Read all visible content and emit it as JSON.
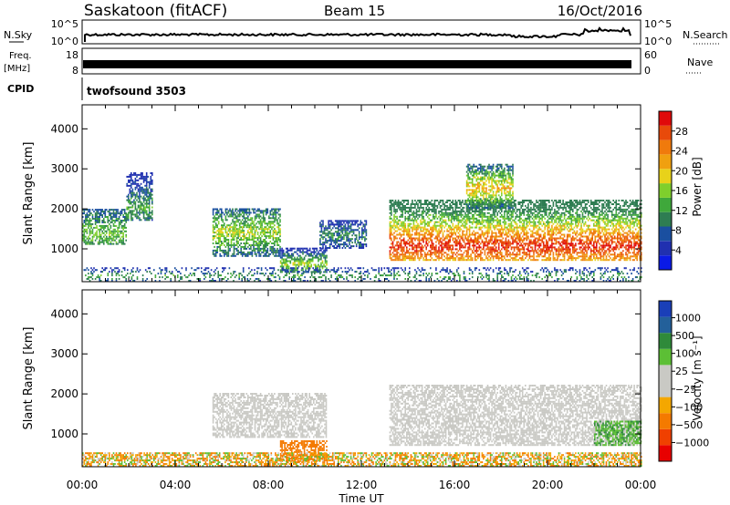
{
  "header": {
    "station": "Saskatoon (fitACF)",
    "beam": "Beam 15",
    "date": "16/Oct/2016"
  },
  "strip_labels": {
    "nsky": "N.Sky",
    "nsky_ticks": [
      "10^5",
      "10^0"
    ],
    "nsearch": "N.Search",
    "nsearch_ticks": [
      "10^5",
      "10^0"
    ],
    "freq_1": "Freq.",
    "freq_2": "[MHz]",
    "freq_ticks": [
      "18",
      "8"
    ],
    "nave": "Nave",
    "nave_ticks": [
      "60",
      "0"
    ],
    "cpid": "CPID",
    "cpid_value": "twofsound 3503"
  },
  "colors": {
    "power": [
      "#0a1ae6",
      "#2030b0",
      "#1a4fa0",
      "#2e7d52",
      "#3fa83b",
      "#7fcf2c",
      "#e8d21a",
      "#f0a010",
      "#f07a0c",
      "#e84a0a",
      "#e00a0a"
    ],
    "velocity": [
      "#e80000",
      "#f04000",
      "#f47a00",
      "#f4a700",
      "#c9c9c4",
      "#c9c9c4",
      "#5cbf35",
      "#2f8a3a",
      "#23609a",
      "#1a3fb8"
    ],
    "ground_scatter": "#c9c9c4"
  },
  "chart_data": [
    {
      "type": "heatmap",
      "name": "power",
      "xlabel": "Time UT",
      "ylabel": "Slant Range [km]",
      "x_ticks": [
        "00:00",
        "04:00",
        "08:00",
        "12:00",
        "16:00",
        "20:00",
        "00:00"
      ],
      "xlim_hours": [
        0,
        24
      ],
      "y_ticks": [
        1000,
        2000,
        3000,
        4000
      ],
      "ylim": [
        180,
        4600
      ],
      "colorbar": {
        "label": "Power [dB]",
        "ticks": [
          "4",
          "8",
          "12",
          "16",
          "20",
          "24",
          "28"
        ],
        "range": [
          0,
          30
        ]
      },
      "regions": [
        {
          "t_start": 0.0,
          "t_end": 1.9,
          "r_low": 1100,
          "r_high": 2000,
          "value_range": [
            8,
            14
          ],
          "peak_range": 1350
        },
        {
          "t_start": 1.9,
          "t_end": 3.0,
          "r_low": 1700,
          "r_high": 2900,
          "value_range": [
            4,
            12
          ],
          "peak_range": 2000
        },
        {
          "t_start": 5.6,
          "t_end": 8.5,
          "r_low": 800,
          "r_high": 2000,
          "value_range": [
            6,
            16
          ],
          "peak_range": 1400
        },
        {
          "t_start": 8.5,
          "t_end": 10.5,
          "r_low": 400,
          "r_high": 1000,
          "value_range": [
            4,
            16
          ],
          "peak_range": 600
        },
        {
          "t_start": 10.2,
          "t_end": 12.2,
          "r_low": 1000,
          "r_high": 1700,
          "value_range": [
            4,
            10
          ],
          "peak_range": 1300
        },
        {
          "t_start": 13.2,
          "t_end": 24.0,
          "r_low": 700,
          "r_high": 2200,
          "value_range": [
            10,
            28
          ],
          "peak_range": 1050
        },
        {
          "t_start": 16.5,
          "t_end": 18.5,
          "r_low": 2000,
          "r_high": 3100,
          "value_range": [
            6,
            20
          ],
          "peak_range": 2500
        },
        {
          "t_start": 0.0,
          "t_end": 24.0,
          "r_low": 180,
          "r_high": 500,
          "value_range": [
            4,
            12
          ],
          "peak_range": 300
        }
      ]
    },
    {
      "type": "heatmap",
      "name": "velocity",
      "xlabel": "Time UT",
      "ylabel": "Slant Range [km]",
      "x_ticks": [
        "00:00",
        "04:00",
        "08:00",
        "12:00",
        "16:00",
        "20:00",
        "00:00"
      ],
      "xlim_hours": [
        0,
        24
      ],
      "y_ticks": [
        1000,
        2000,
        3000,
        4000
      ],
      "ylim": [
        180,
        4600
      ],
      "colorbar": {
        "label": "Velocity [m s⁻¹]",
        "ticks": [
          "1000",
          "500",
          "100",
          "25",
          "−25",
          "−100",
          "−500",
          "−1000"
        ]
      },
      "regions": [
        {
          "t_start": 5.6,
          "t_end": 10.5,
          "r_low": 900,
          "r_high": 2000,
          "velocity_range": [
            -25,
            25
          ],
          "ground_scatter": true
        },
        {
          "t_start": 13.2,
          "t_end": 24.0,
          "r_low": 700,
          "r_high": 2200,
          "velocity_range": [
            -25,
            25
          ],
          "ground_scatter": true
        },
        {
          "t_start": 22.0,
          "t_end": 24.0,
          "r_low": 700,
          "r_high": 1300,
          "velocity_range": [
            25,
            150
          ],
          "ground_scatter": false
        },
        {
          "t_start": 8.5,
          "t_end": 10.5,
          "r_low": 300,
          "r_high": 800,
          "velocity_range": [
            -500,
            -100
          ],
          "ground_scatter": false
        },
        {
          "t_start": 0.0,
          "t_end": 24.0,
          "r_low": 180,
          "r_high": 500,
          "velocity_range": [
            -200,
            100
          ],
          "ground_scatter": false
        }
      ]
    }
  ]
}
